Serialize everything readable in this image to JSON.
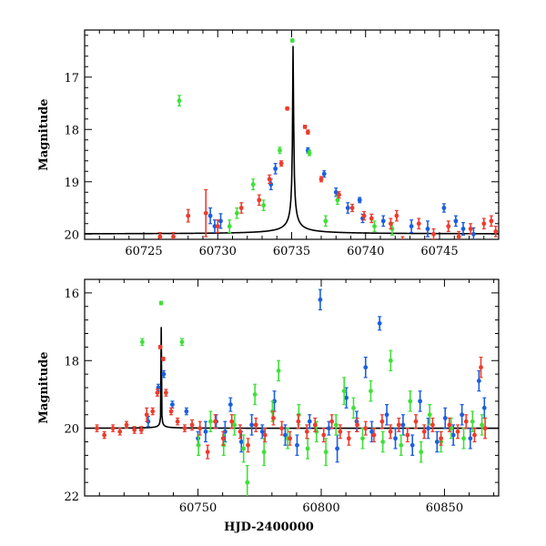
{
  "colors": {
    "model": "#000000",
    "blue": "#1a5fe0",
    "green": "#3fe03a",
    "red": "#ef3b2c"
  },
  "shared_labels": {
    "xlabel": "HJD-2400000",
    "ylabel": "Magnitude"
  },
  "chart_data": [
    {
      "type": "scatter",
      "title": "",
      "xlabel": "",
      "ylabel": "Magnitude",
      "xlim": [
        60721,
        60749
      ],
      "ylim": [
        20.1,
        16.1
      ],
      "y_inverted": true,
      "xticks": [
        60725,
        60730,
        60735,
        60740,
        60745
      ],
      "yticks": [
        17,
        18,
        19,
        20
      ],
      "model": {
        "t0": 60735.1,
        "peak": 16.3,
        "base": 20.0,
        "width": 0.55
      },
      "series": [
        {
          "color": "blue",
          "points": [
            [
              60729.5,
              19.65,
              0.15
            ],
            [
              60729.8,
              19.85,
              0.12
            ],
            [
              60730.2,
              19.75,
              0.14
            ],
            [
              60733.6,
              19.05,
              0.1
            ],
            [
              60733.9,
              18.75,
              0.1
            ],
            [
              60736.1,
              18.4,
              0.05
            ],
            [
              60737.2,
              18.85,
              0.06
            ],
            [
              60738.0,
              19.2,
              0.08
            ],
            [
              60738.8,
              19.5,
              0.1
            ],
            [
              60739.6,
              19.35,
              0.05
            ],
            [
              60739.8,
              19.7,
              0.08
            ],
            [
              60741.2,
              19.75,
              0.1
            ],
            [
              60743.1,
              19.85,
              0.12
            ],
            [
              60744.2,
              19.9,
              0.15
            ],
            [
              60745.3,
              19.5,
              0.08
            ],
            [
              60746.1,
              19.75,
              0.1
            ],
            [
              60746.6,
              19.9,
              0.12
            ],
            [
              60747.3,
              20.0,
              0.12
            ]
          ]
        },
        {
          "color": "green",
          "points": [
            [
              60727.4,
              17.45,
              0.1
            ],
            [
              60730.8,
              19.85,
              0.12
            ],
            [
              60731.3,
              19.6,
              0.1
            ],
            [
              60732.4,
              19.05,
              0.1
            ],
            [
              60733.1,
              19.45,
              0.1
            ],
            [
              60734.2,
              18.4,
              0.06
            ],
            [
              60735.05,
              16.3,
              0.03
            ],
            [
              60736.2,
              18.45,
              0.05
            ],
            [
              60737.3,
              19.75,
              0.1
            ],
            [
              60738.1,
              19.35,
              0.08
            ],
            [
              60740.6,
              19.85,
              0.1
            ],
            [
              60741.8,
              19.9,
              0.12
            ]
          ]
        },
        {
          "color": "red",
          "points": [
            [
              60726.1,
              20.05,
              0.08
            ],
            [
              60727.0,
              20.05,
              0.08
            ],
            [
              60728.0,
              19.65,
              0.12
            ],
            [
              60729.2,
              19.6,
              0.45
            ],
            [
              60730.0,
              19.85,
              0.12
            ],
            [
              60731.6,
              19.5,
              0.1
            ],
            [
              60732.8,
              19.35,
              0.1
            ],
            [
              60733.5,
              18.95,
              0.08
            ],
            [
              60734.3,
              18.65,
              0.05
            ],
            [
              60734.7,
              17.6,
              0.03
            ],
            [
              60735.9,
              17.95,
              0.03
            ],
            [
              60736.1,
              18.05,
              0.04
            ],
            [
              60737.0,
              18.95,
              0.05
            ],
            [
              60738.2,
              19.25,
              0.06
            ],
            [
              60739.1,
              19.5,
              0.07
            ],
            [
              60739.9,
              19.65,
              0.08
            ],
            [
              60740.4,
              19.7,
              0.08
            ],
            [
              60741.7,
              19.8,
              0.1
            ],
            [
              60742.1,
              19.65,
              0.1
            ],
            [
              60742.5,
              20.15,
              0.1
            ],
            [
              60743.6,
              19.8,
              0.1
            ],
            [
              60744.6,
              20.0,
              0.1
            ],
            [
              60745.6,
              19.85,
              0.1
            ],
            [
              60746.3,
              20.05,
              0.1
            ],
            [
              60747.1,
              19.9,
              0.1
            ],
            [
              60748.0,
              19.8,
              0.1
            ],
            [
              60748.5,
              19.75,
              0.1
            ],
            [
              60748.8,
              19.95,
              0.1
            ]
          ]
        }
      ]
    },
    {
      "type": "scatter",
      "title": "",
      "xlabel": "HJD-2400000",
      "ylabel": "Magnitude",
      "xlim": [
        60704,
        60872
      ],
      "ylim": [
        22,
        15.6
      ],
      "y_inverted": true,
      "xticks": [
        60750,
        60800,
        60850
      ],
      "yticks": [
        16,
        18,
        20,
        22
      ],
      "model": {
        "t0": 60735.1,
        "peak": 16.3,
        "base": 20.0,
        "width": 0.55
      },
      "series": [
        {
          "color": "blue",
          "points": [
            [
              60729.8,
              19.8,
              0.15
            ],
            [
              60733.9,
              18.8,
              0.1
            ],
            [
              60736.1,
              18.4,
              0.1
            ],
            [
              60739.6,
              19.3,
              0.1
            ],
            [
              60745.3,
              19.5,
              0.1
            ],
            [
              60750.0,
              20.3,
              0.2
            ],
            [
              60753.1,
              20.1,
              0.3
            ],
            [
              60757.4,
              19.8,
              0.2
            ],
            [
              60761.0,
              20.1,
              0.3
            ],
            [
              60763.2,
              19.3,
              0.2
            ],
            [
              60767.6,
              20.4,
              0.3
            ],
            [
              60771.8,
              19.9,
              0.3
            ],
            [
              60776.1,
              20.1,
              0.2
            ],
            [
              60781.0,
              19.2,
              0.3
            ],
            [
              60785.4,
              20.2,
              0.3
            ],
            [
              60790.2,
              20.5,
              0.3
            ],
            [
              60795.3,
              19.8,
              0.2
            ],
            [
              60799.6,
              16.2,
              0.3
            ],
            [
              60803.1,
              20.0,
              0.2
            ],
            [
              60806.5,
              20.6,
              0.4
            ],
            [
              60810.2,
              19.1,
              0.3
            ],
            [
              60814.4,
              19.8,
              0.3
            ],
            [
              60818.0,
              18.2,
              0.3
            ],
            [
              60820.5,
              20.1,
              0.3
            ],
            [
              60823.7,
              16.9,
              0.2
            ],
            [
              60826.6,
              19.6,
              0.3
            ],
            [
              60830.1,
              20.3,
              0.3
            ],
            [
              60833.2,
              19.9,
              0.3
            ],
            [
              60837.0,
              20.5,
              0.3
            ],
            [
              60840.1,
              19.2,
              0.3
            ],
            [
              60843.4,
              20.0,
              0.3
            ],
            [
              60847.0,
              20.4,
              0.3
            ],
            [
              60850.3,
              19.7,
              0.3
            ],
            [
              60853.6,
              20.2,
              0.3
            ],
            [
              60857.1,
              19.6,
              0.3
            ],
            [
              60860.5,
              20.3,
              0.3
            ],
            [
              60864.0,
              18.6,
              0.3
            ],
            [
              60866.2,
              19.4,
              0.3
            ]
          ]
        },
        {
          "color": "green",
          "points": [
            [
              60727.4,
              17.45,
              0.1
            ],
            [
              60735.05,
              16.3,
              0.05
            ],
            [
              60743.5,
              17.45,
              0.1
            ],
            [
              60750.2,
              20.5,
              0.3
            ],
            [
              60755.1,
              19.8,
              0.3
            ],
            [
              60760.4,
              20.5,
              0.3
            ],
            [
              60764.8,
              19.9,
              0.3
            ],
            [
              60768.5,
              20.6,
              0.4
            ],
            [
              60770.0,
              21.6,
              0.5
            ],
            [
              60773.1,
              19.0,
              0.3
            ],
            [
              60776.8,
              20.7,
              0.4
            ],
            [
              60780.2,
              19.5,
              0.3
            ],
            [
              60782.7,
              18.3,
              0.3
            ],
            [
              60786.4,
              20.3,
              0.3
            ],
            [
              60790.9,
              19.6,
              0.3
            ],
            [
              60794.5,
              20.6,
              0.3
            ],
            [
              60798.1,
              20.1,
              0.3
            ],
            [
              60801.9,
              20.7,
              0.4
            ],
            [
              60806.0,
              19.9,
              0.3
            ],
            [
              60809.3,
              18.9,
              0.4
            ],
            [
              60813.1,
              19.4,
              0.3
            ],
            [
              60816.8,
              20.3,
              0.3
            ],
            [
              60820.1,
              18.9,
              0.3
            ],
            [
              60825.0,
              20.4,
              0.3
            ],
            [
              60828.2,
              18.0,
              0.3
            ],
            [
              60832.4,
              20.5,
              0.3
            ],
            [
              60836.1,
              19.2,
              0.3
            ],
            [
              60840.5,
              20.7,
              0.3
            ],
            [
              60844.0,
              19.6,
              0.3
            ],
            [
              60848.6,
              20.4,
              0.3
            ],
            [
              60852.7,
              20.0,
              0.3
            ],
            [
              60857.8,
              20.3,
              0.3
            ],
            [
              60861.4,
              19.8,
              0.3
            ],
            [
              60865.2,
              19.9,
              0.3
            ]
          ]
        },
        {
          "color": "red",
          "points": [
            [
              60709.0,
              20.0,
              0.1
            ],
            [
              60712.0,
              20.2,
              0.1
            ],
            [
              60715.5,
              20.0,
              0.1
            ],
            [
              60718.3,
              20.1,
              0.1
            ],
            [
              60721.0,
              19.9,
              0.1
            ],
            [
              60724.2,
              20.05,
              0.1
            ],
            [
              60727.0,
              20.05,
              0.1
            ],
            [
              60729.2,
              19.6,
              0.2
            ],
            [
              60731.6,
              19.5,
              0.1
            ],
            [
              60733.5,
              18.95,
              0.1
            ],
            [
              60734.7,
              17.6,
              0.05
            ],
            [
              60735.9,
              17.95,
              0.05
            ],
            [
              60737.0,
              18.95,
              0.1
            ],
            [
              60739.1,
              19.5,
              0.1
            ],
            [
              60741.7,
              19.8,
              0.1
            ],
            [
              60744.6,
              20.0,
              0.1
            ],
            [
              60747.6,
              19.9,
              0.15
            ],
            [
              60750.8,
              20.0,
              0.2
            ],
            [
              60753.9,
              20.7,
              0.2
            ],
            [
              60757.0,
              19.8,
              0.2
            ],
            [
              60760.2,
              20.3,
              0.2
            ],
            [
              60763.7,
              19.8,
              0.2
            ],
            [
              60767.1,
              20.1,
              0.2
            ],
            [
              60770.3,
              20.5,
              0.2
            ],
            [
              60773.5,
              19.9,
              0.2
            ],
            [
              60777.2,
              20.2,
              0.2
            ],
            [
              60780.6,
              19.7,
              0.2
            ],
            [
              60784.0,
              20.0,
              0.2
            ],
            [
              60787.3,
              20.3,
              0.2
            ],
            [
              60790.7,
              19.8,
              0.2
            ],
            [
              60794.2,
              20.1,
              0.2
            ],
            [
              60797.5,
              19.9,
              0.2
            ],
            [
              60801.0,
              20.2,
              0.2
            ],
            [
              60804.3,
              19.8,
              0.2
            ],
            [
              60807.7,
              20.1,
              0.2
            ],
            [
              60811.2,
              20.3,
              0.2
            ],
            [
              60814.6,
              19.9,
              0.2
            ],
            [
              60818.0,
              20.0,
              0.2
            ],
            [
              60821.4,
              20.2,
              0.2
            ],
            [
              60824.7,
              19.8,
              0.2
            ],
            [
              60828.1,
              20.1,
              0.2
            ],
            [
              60831.5,
              19.9,
              0.2
            ],
            [
              60835.0,
              20.2,
              0.2
            ],
            [
              60838.4,
              19.8,
              0.2
            ],
            [
              60841.8,
              20.1,
              0.2
            ],
            [
              60845.2,
              19.9,
              0.2
            ],
            [
              60848.6,
              20.3,
              0.2
            ],
            [
              60852.0,
              19.9,
              0.2
            ],
            [
              60855.4,
              20.1,
              0.2
            ],
            [
              60858.8,
              19.8,
              0.2
            ],
            [
              60862.2,
              20.2,
              0.2
            ],
            [
              60864.8,
              18.2,
              0.3
            ],
            [
              60866.5,
              20.0,
              0.3
            ]
          ]
        }
      ]
    }
  ]
}
